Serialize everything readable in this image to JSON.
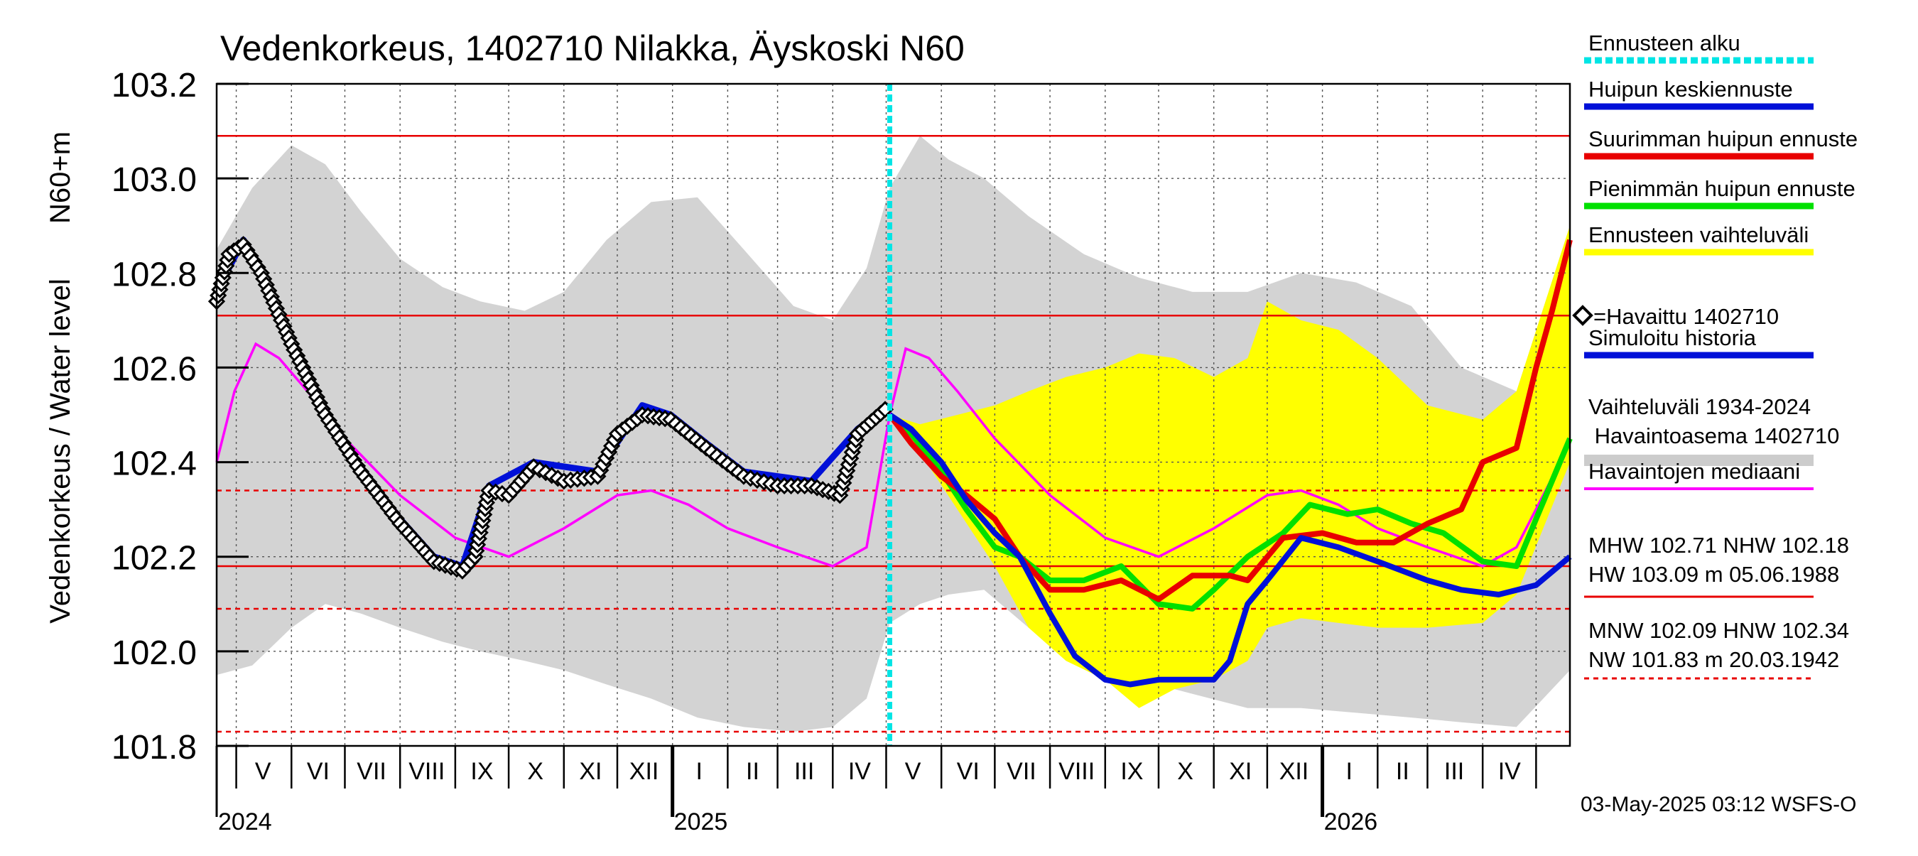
{
  "chart_data": {
    "type": "line",
    "title": "Vedenkorkeus, 1402710 Nilakka, Äyskoski N60",
    "ylabel": "Vedenkorkeus / Water level",
    "ylabel_unit": "N60+m",
    "ylim": [
      101.8,
      103.2
    ],
    "y_ticks": [
      "103.2",
      "103.0",
      "102.8",
      "102.6",
      "102.4",
      "102.2",
      "102.0",
      "101.8"
    ],
    "x_range": [
      "2024-04-20",
      "2026-05-20"
    ],
    "month_labels": [
      {
        "label": "V",
        "date": "2024-05-16"
      },
      {
        "label": "VI",
        "date": "2024-06-16"
      },
      {
        "label": "VII",
        "date": "2024-07-16"
      },
      {
        "label": "VIII",
        "date": "2024-08-16"
      },
      {
        "label": "IX",
        "date": "2024-09-16"
      },
      {
        "label": "X",
        "date": "2024-10-16"
      },
      {
        "label": "XI",
        "date": "2024-11-16"
      },
      {
        "label": "XII",
        "date": "2024-12-16"
      },
      {
        "label": "I",
        "date": "2025-01-16"
      },
      {
        "label": "II",
        "date": "2025-02-15"
      },
      {
        "label": "III",
        "date": "2025-03-16"
      },
      {
        "label": "IV",
        "date": "2025-04-16"
      },
      {
        "label": "V",
        "date": "2025-05-16"
      },
      {
        "label": "VI",
        "date": "2025-06-16"
      },
      {
        "label": "VII",
        "date": "2025-07-16"
      },
      {
        "label": "VIII",
        "date": "2025-08-16"
      },
      {
        "label": "IX",
        "date": "2025-09-16"
      },
      {
        "label": "X",
        "date": "2025-10-16"
      },
      {
        "label": "XI",
        "date": "2025-11-16"
      },
      {
        "label": "XII",
        "date": "2025-12-16"
      },
      {
        "label": "I",
        "date": "2026-01-16"
      },
      {
        "label": "II",
        "date": "2026-02-15"
      },
      {
        "label": "III",
        "date": "2026-03-16"
      },
      {
        "label": "IV",
        "date": "2026-04-16"
      }
    ],
    "month_gridlines": [
      "2024-05-01",
      "2024-06-01",
      "2024-07-01",
      "2024-08-01",
      "2024-09-01",
      "2024-10-01",
      "2024-11-01",
      "2024-12-01",
      "2025-01-01",
      "2025-02-01",
      "2025-03-01",
      "2025-04-01",
      "2025-05-01",
      "2025-06-01",
      "2025-07-01",
      "2025-08-01",
      "2025-09-01",
      "2025-10-01",
      "2025-11-01",
      "2025-12-01",
      "2026-01-01",
      "2026-02-01",
      "2026-03-01",
      "2026-04-01",
      "2026-05-01"
    ],
    "year_labels": [
      {
        "label": "2024",
        "date": "2024-04-20"
      },
      {
        "label": "2025",
        "date": "2025-01-01"
      },
      {
        "label": "2026",
        "date": "2026-01-01"
      }
    ],
    "forecast_start": "2025-05-03",
    "reference_lines": [
      {
        "key": "HW",
        "value": 103.09,
        "style": "solid"
      },
      {
        "key": "MHW",
        "value": 102.71,
        "style": "solid"
      },
      {
        "key": "HNW",
        "value": 102.34,
        "style": "dashed"
      },
      {
        "key": "NHW",
        "value": 102.18,
        "style": "solid"
      },
      {
        "key": "MNW",
        "value": 102.09,
        "style": "dashed"
      },
      {
        "key": "NW",
        "value": 101.83,
        "style": "dashed"
      }
    ],
    "historical_range": {
      "x": [
        "2024-04-20",
        "2024-05-10",
        "2024-06-01",
        "2024-06-20",
        "2024-07-10",
        "2024-08-01",
        "2024-08-25",
        "2024-09-15",
        "2024-10-10",
        "2024-11-01",
        "2024-11-25",
        "2024-12-20",
        "2025-01-15",
        "2025-02-10",
        "2025-03-10",
        "2025-04-01",
        "2025-04-20",
        "2025-05-03",
        "2025-05-20",
        "2025-06-05",
        "2025-06-25",
        "2025-07-20",
        "2025-08-20",
        "2025-09-20",
        "2025-10-20",
        "2025-11-20",
        "2025-12-20",
        "2026-01-20",
        "2026-02-20",
        "2026-03-20",
        "2026-04-20",
        "2026-05-20"
      ],
      "upper": [
        102.85,
        102.98,
        103.07,
        103.03,
        102.93,
        102.83,
        102.77,
        102.74,
        102.72,
        102.76,
        102.87,
        102.95,
        102.96,
        102.85,
        102.73,
        102.7,
        102.81,
        102.98,
        103.09,
        103.04,
        103.0,
        102.92,
        102.84,
        102.79,
        102.76,
        102.76,
        102.8,
        102.78,
        102.73,
        102.6,
        102.55,
        102.9
      ],
      "lower": [
        101.95,
        101.97,
        102.05,
        102.1,
        102.08,
        102.05,
        102.02,
        102.0,
        101.98,
        101.96,
        101.93,
        101.9,
        101.86,
        101.84,
        101.83,
        101.84,
        101.9,
        102.06,
        102.1,
        102.12,
        102.13,
        102.05,
        101.98,
        101.94,
        101.91,
        101.88,
        101.88,
        101.87,
        101.86,
        101.85,
        101.84,
        101.96
      ]
    },
    "series": [
      {
        "name": "Havaittu 1402710",
        "role": "observed",
        "x": [
          "2024-04-20",
          "2024-04-27",
          "2024-05-05",
          "2024-05-15",
          "2024-06-01",
          "2024-06-20",
          "2024-07-10",
          "2024-08-01",
          "2024-08-20",
          "2024-09-05",
          "2024-09-12",
          "2024-09-20",
          "2024-10-01",
          "2024-10-15",
          "2024-11-01",
          "2024-11-20",
          "2024-12-01",
          "2024-12-15",
          "2024-12-31",
          "2025-01-20",
          "2025-02-10",
          "2025-03-01",
          "2025-03-20",
          "2025-04-05",
          "2025-04-15",
          "2025-05-03"
        ],
        "y": [
          102.74,
          102.84,
          102.86,
          102.8,
          102.65,
          102.5,
          102.38,
          102.27,
          102.19,
          102.17,
          102.2,
          102.34,
          102.33,
          102.39,
          102.36,
          102.37,
          102.46,
          102.5,
          102.49,
          102.43,
          102.37,
          102.35,
          102.35,
          102.33,
          102.46,
          102.52
        ]
      },
      {
        "name": "Simuloitu historia",
        "role": "simulated",
        "x": [
          "2024-04-20",
          "2024-05-05",
          "2024-05-15",
          "2024-06-01",
          "2024-06-20",
          "2024-07-10",
          "2024-08-01",
          "2024-08-20",
          "2024-09-05",
          "2024-09-20",
          "2024-10-15",
          "2024-11-20",
          "2024-12-15",
          "2024-12-31",
          "2025-01-20",
          "2025-02-10",
          "2025-03-20",
          "2025-04-15",
          "2025-05-03"
        ],
        "y": [
          102.76,
          102.87,
          102.81,
          102.66,
          102.51,
          102.39,
          102.28,
          102.2,
          102.18,
          102.35,
          102.4,
          102.38,
          102.52,
          102.5,
          102.44,
          102.38,
          102.36,
          102.47,
          102.52
        ]
      },
      {
        "name": "Havaintojen mediaani",
        "role": "median",
        "x": [
          "2024-04-20",
          "2024-04-30",
          "2024-05-12",
          "2024-05-25",
          "2024-06-10",
          "2024-07-01",
          "2024-08-01",
          "2024-09-01",
          "2024-10-01",
          "2024-11-01",
          "2024-12-01",
          "2024-12-20",
          "2025-01-10",
          "2025-02-01",
          "2025-03-01",
          "2025-04-01",
          "2025-04-20",
          "2025-05-03",
          "2025-05-12",
          "2025-05-25",
          "2025-06-10",
          "2025-07-01",
          "2025-08-01",
          "2025-09-01",
          "2025-10-01",
          "2025-11-01",
          "2025-12-01",
          "2025-12-20",
          "2026-01-10",
          "2026-02-01",
          "2026-03-01",
          "2026-04-01",
          "2026-04-20",
          "2026-05-20"
        ],
        "y": [
          102.4,
          102.55,
          102.65,
          102.62,
          102.55,
          102.45,
          102.33,
          102.24,
          102.2,
          102.26,
          102.33,
          102.34,
          102.31,
          102.26,
          102.22,
          102.18,
          102.22,
          102.5,
          102.64,
          102.62,
          102.55,
          102.45,
          102.33,
          102.24,
          102.2,
          102.26,
          102.33,
          102.34,
          102.31,
          102.26,
          102.22,
          102.18,
          102.22,
          102.44
        ]
      },
      {
        "name": "Ennusteen vaihteluväli",
        "role": "forecast_band",
        "x": [
          "2025-05-03",
          "2025-05-20",
          "2025-06-10",
          "2025-07-01",
          "2025-07-20",
          "2025-08-10",
          "2025-09-01",
          "2025-09-20",
          "2025-10-10",
          "2025-11-01",
          "2025-11-20",
          "2025-12-01",
          "2025-12-20",
          "2026-01-10",
          "2026-02-01",
          "2026-03-01",
          "2026-04-01",
          "2026-04-20",
          "2026-05-20"
        ],
        "upper": [
          102.5,
          102.48,
          102.5,
          102.52,
          102.55,
          102.58,
          102.6,
          102.63,
          102.62,
          102.58,
          102.62,
          102.74,
          102.7,
          102.68,
          102.62,
          102.52,
          102.49,
          102.55,
          102.9
        ],
        "lower": [
          102.5,
          102.42,
          102.3,
          102.18,
          102.05,
          101.98,
          101.94,
          101.88,
          101.92,
          101.94,
          101.98,
          102.05,
          102.07,
          102.06,
          102.05,
          102.05,
          102.06,
          102.12,
          102.4
        ]
      },
      {
        "name": "Huipun keskiennuste",
        "role": "forecast_mid",
        "x": [
          "2025-05-03",
          "2025-05-15",
          "2025-06-01",
          "2025-06-15",
          "2025-07-01",
          "2025-07-15",
          "2025-08-01",
          "2025-08-15",
          "2025-09-01",
          "2025-09-15",
          "2025-10-01",
          "2025-10-15",
          "2025-11-01",
          "2025-11-10",
          "2025-11-20",
          "2025-12-01",
          "2025-12-20",
          "2026-01-10",
          "2026-02-01",
          "2026-03-01",
          "2026-03-20",
          "2026-04-10",
          "2026-05-01",
          "2026-05-20"
        ],
        "y": [
          102.5,
          102.47,
          102.4,
          102.32,
          102.25,
          102.2,
          102.08,
          101.99,
          101.94,
          101.93,
          101.94,
          101.94,
          101.94,
          101.98,
          102.1,
          102.15,
          102.24,
          102.22,
          102.19,
          102.15,
          102.13,
          102.12,
          102.14,
          102.2
        ]
      },
      {
        "name": "Suurimman huipun ennuste",
        "role": "forecast_max",
        "x": [
          "2025-05-03",
          "2025-05-15",
          "2025-06-01",
          "2025-06-15",
          "2025-07-01",
          "2025-07-15",
          "2025-08-01",
          "2025-08-20",
          "2025-09-10",
          "2025-10-01",
          "2025-10-20",
          "2025-11-10",
          "2025-11-20",
          "2025-12-10",
          "2026-01-01",
          "2026-01-20",
          "2026-02-10",
          "2026-03-01",
          "2026-03-20",
          "2026-04-01",
          "2026-04-20",
          "2026-05-01",
          "2026-05-10",
          "2026-05-20"
        ],
        "y": [
          102.5,
          102.44,
          102.37,
          102.33,
          102.28,
          102.2,
          102.13,
          102.13,
          102.15,
          102.11,
          102.16,
          102.16,
          102.15,
          102.24,
          102.25,
          102.23,
          102.23,
          102.27,
          102.3,
          102.4,
          102.43,
          102.6,
          102.72,
          102.87
        ]
      },
      {
        "name": "Pienimmän huipun ennuste",
        "role": "forecast_min",
        "x": [
          "2025-05-03",
          "2025-05-15",
          "2025-06-01",
          "2025-06-15",
          "2025-07-01",
          "2025-07-15",
          "2025-08-01",
          "2025-08-20",
          "2025-09-10",
          "2025-10-01",
          "2025-10-20",
          "2025-11-01",
          "2025-11-20",
          "2025-12-10",
          "2025-12-25",
          "2026-01-15",
          "2026-02-01",
          "2026-02-20",
          "2026-03-10",
          "2026-04-01",
          "2026-04-20",
          "2026-05-01",
          "2026-05-20"
        ],
        "y": [
          102.5,
          102.46,
          102.38,
          102.3,
          102.22,
          102.2,
          102.15,
          102.15,
          102.18,
          102.1,
          102.09,
          102.13,
          102.2,
          102.25,
          102.31,
          102.29,
          102.3,
          102.27,
          102.25,
          102.19,
          102.18,
          102.28,
          102.45
        ]
      }
    ],
    "legend": [
      {
        "label": "Ennusteen alku",
        "color": "#00e5e5",
        "style": "dotted"
      },
      {
        "label": "Huipun keskiennuste",
        "color": "#0010d8",
        "style": "solid"
      },
      {
        "label": "Suurimman huipun ennuste",
        "color": "#e80000",
        "style": "solid"
      },
      {
        "label": "Pienimmän huipun ennuste",
        "color": "#00e000",
        "style": "solid"
      },
      {
        "label": "Ennusteen vaihteluväli",
        "color": "#ffff00",
        "style": "solid"
      },
      {
        "label": "=Havaittu 1402710",
        "color": "#000000",
        "style": "diamond"
      },
      {
        "label": "Simuloitu historia",
        "color": "#0010d8",
        "style": "solid"
      },
      {
        "label": "Vaihteluväli 1934-2024",
        "label2": " Havaintoasema 1402710",
        "color": "#cccccc",
        "style": "band"
      },
      {
        "label": "Havaintojen mediaani",
        "color": "#ff00ff",
        "style": "thin"
      },
      {
        "label": "MHW 102.71 NHW 102.18",
        "label2": "HW 103.09 m 05.06.1988",
        "color": "#e80000",
        "style": "solid-thin"
      },
      {
        "label": "MNW 102.09 HNW 102.34",
        "label2": "NW 101.83 m 20.03.1942",
        "color": "#e80000",
        "style": "dashed"
      }
    ],
    "colors": {
      "band_hist": "#d3d3d3",
      "band_forecast": "#ffff00",
      "observed": "#000000",
      "simulated": "#0010d8",
      "median": "#ff00ff",
      "forecast_mid": "#0010d8",
      "forecast_max": "#e80000",
      "forecast_min": "#00e000",
      "reference": "#e80000",
      "forecast_start": "#00e5e5"
    },
    "timestamp": "03-May-2025 03:12 WSFS-O"
  }
}
